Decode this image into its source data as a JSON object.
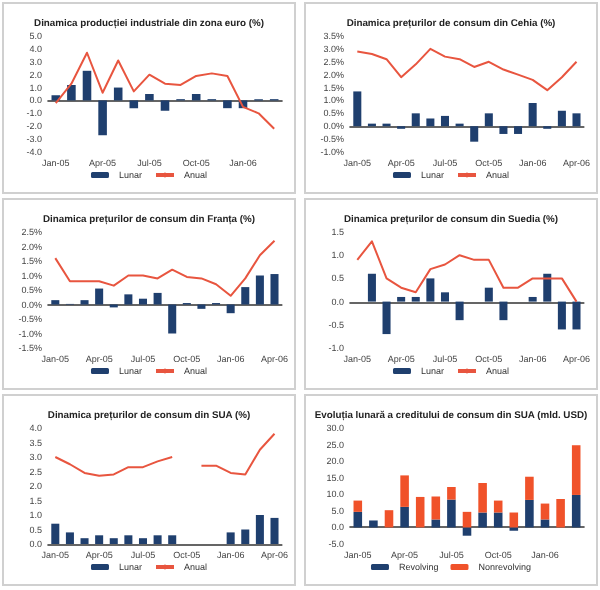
{
  "chart_data": [
    {
      "type": "bar",
      "title": "Dinamica producției industriale din zona euro (%)",
      "categories": [
        "Jan-05",
        null,
        null,
        "Apr-05",
        null,
        null,
        "Jul-05",
        null,
        null,
        "Oct-05",
        null,
        null,
        "Jan-06",
        null,
        null
      ],
      "series": [
        {
          "name": "Lunar",
          "type": "bar",
          "color": "#1f3f6e",
          "values": [
            0.4,
            1.2,
            2.3,
            -2.7,
            1.0,
            -0.6,
            0.5,
            -0.8,
            0.1,
            0.5,
            0.1,
            -0.6,
            -0.6,
            0.1,
            0.1
          ]
        },
        {
          "name": "Anual",
          "type": "line",
          "color": "#e8553f",
          "values": [
            -0.2,
            1.3,
            3.7,
            0.6,
            3.1,
            0.7,
            2.0,
            1.3,
            1.2,
            1.9,
            2.1,
            1.9,
            -0.5,
            -1.0,
            -2.2
          ]
        }
      ],
      "ylim": [
        -4,
        5
      ],
      "yticks": [
        {
          "value": -4,
          "label": "-4.0"
        },
        {
          "value": -3,
          "label": "-3.0"
        },
        {
          "value": -2,
          "label": "-2.0"
        },
        {
          "value": -1,
          "label": "-1.0"
        },
        {
          "value": 0,
          "label": "0.0"
        },
        {
          "value": 1,
          "label": "1.0"
        },
        {
          "value": 2,
          "label": "2.0"
        },
        {
          "value": 3,
          "label": "3.0"
        },
        {
          "value": 4,
          "label": "4.0"
        },
        {
          "value": 5,
          "label": "5.0"
        }
      ],
      "legend": "bottom",
      "marker": "none"
    },
    {
      "type": "bar",
      "title": "Dinamica prețurilor de consum din Cehia (%)",
      "categories": [
        "Jan-05",
        null,
        null,
        "Apr-05",
        null,
        null,
        "Jul-05",
        null,
        null,
        "Oct-05",
        null,
        null,
        "Jan-06",
        null,
        null,
        "Apr-06"
      ],
      "series": [
        {
          "name": "Lunar",
          "type": "bar",
          "color": "#1f3f6e",
          "values": [
            1.35,
            0.1,
            0.1,
            -0.1,
            0.5,
            0.3,
            0.4,
            0.1,
            -0.6,
            0.5,
            -0.3,
            -0.3,
            0.9,
            -0.1,
            0.6,
            0.5
          ]
        },
        {
          "name": "Anual",
          "type": "line",
          "color": "#e8553f",
          "values": [
            2.9,
            2.8,
            2.6,
            1.9,
            2.4,
            3.0,
            2.7,
            2.6,
            2.3,
            2.5,
            2.2,
            2.0,
            1.8,
            1.4,
            1.9,
            2.5
          ]
        }
      ],
      "ylim": [
        -1,
        3.5
      ],
      "yticks": [
        {
          "value": -1,
          "label": "-1.0%"
        },
        {
          "value": -0.5,
          "label": "-0.5%"
        },
        {
          "value": 0,
          "label": "0.0%"
        },
        {
          "value": 0.5,
          "label": "0.5%"
        },
        {
          "value": 1,
          "label": "1.0%"
        },
        {
          "value": 1.5,
          "label": "1.5%"
        },
        {
          "value": 2,
          "label": "2.0%"
        },
        {
          "value": 2.5,
          "label": "2.5%"
        },
        {
          "value": 3,
          "label": "3.0%"
        },
        {
          "value": 3.5,
          "label": "3.5%"
        }
      ],
      "legend": "bottom",
      "marker": "none"
    },
    {
      "type": "bar",
      "title": "Dinamica prețurilor de consum din Franța (%)",
      "categories": [
        "Jan-05",
        null,
        null,
        "Apr-05",
        null,
        null,
        "Jul-05",
        null,
        null,
        "Oct-05",
        null,
        null,
        "Jan-06",
        null,
        null,
        "Apr-06"
      ],
      "series": [
        {
          "name": "Lunar",
          "type": "bar",
          "color": "#1f3f6e",
          "values": [
            0.15,
            0.02,
            0.15,
            0.55,
            -0.1,
            0.35,
            0.2,
            0.4,
            -1.0,
            0.05,
            -0.15,
            0.05,
            -0.3,
            0.6,
            1.0,
            1.05
          ]
        },
        {
          "name": "Anual",
          "type": "line",
          "color": "#e8553f",
          "values": [
            1.6,
            0.8,
            0.8,
            0.8,
            0.65,
            1.0,
            1.0,
            0.9,
            1.2,
            0.95,
            0.9,
            0.7,
            0.3,
            0.9,
            1.7,
            2.2
          ]
        }
      ],
      "ylim": [
        -1.5,
        2.5
      ],
      "yticks": [
        {
          "value": -1.5,
          "label": "-1.5%"
        },
        {
          "value": -1,
          "label": "-1.0%"
        },
        {
          "value": -0.5,
          "label": "-0.5%"
        },
        {
          "value": 0,
          "label": "0.0%"
        },
        {
          "value": 0.5,
          "label": "0.5%"
        },
        {
          "value": 1,
          "label": "1.0%"
        },
        {
          "value": 1.5,
          "label": "1.5%"
        },
        {
          "value": 2,
          "label": "2.0%"
        },
        {
          "value": 2.5,
          "label": "2.5%"
        }
      ],
      "legend": "bottom",
      "marker": "none"
    },
    {
      "type": "bar",
      "title": "Dinamica prețurilor de consum din Suedia (%)",
      "categories": [
        "Jan-05",
        null,
        null,
        "Apr-05",
        null,
        null,
        "Jul-05",
        null,
        null,
        "Oct-05",
        null,
        null,
        "Jan-06",
        null,
        null,
        "Apr-06"
      ],
      "series": [
        {
          "name": "Lunar",
          "type": "bar",
          "color": "#1f3f6e",
          "values": [
            null,
            0.6,
            -0.7,
            0.1,
            0.1,
            0.5,
            0.2,
            -0.4,
            0,
            0.3,
            -0.4,
            0,
            0.1,
            0.6,
            -0.6,
            -0.6
          ]
        },
        {
          "name": "Anual",
          "type": "line",
          "color": "#e8553f",
          "values": [
            0.9,
            1.3,
            0.5,
            0.3,
            0.2,
            0.7,
            0.8,
            1.0,
            0.9,
            0.9,
            0.3,
            0.3,
            0.5,
            0.5,
            0.5,
            0.0
          ]
        }
      ],
      "ylim": [
        -1,
        1.5
      ],
      "yticks": [
        {
          "value": -1,
          "label": "-1.0"
        },
        {
          "value": -0.5,
          "label": "-0.5"
        },
        {
          "value": 0,
          "label": "0.0"
        },
        {
          "value": 0.5,
          "label": "0.5"
        },
        {
          "value": 1,
          "label": "1.0"
        },
        {
          "value": 1.5,
          "label": "1.5"
        }
      ],
      "legend": "bottom",
      "marker": "none"
    },
    {
      "type": "bar",
      "title": "Dinamica prețurilor de consum din SUA (%)",
      "categories": [
        "Jan-05",
        null,
        null,
        "Apr-05",
        null,
        null,
        "Jul-05",
        null,
        null,
        "Oct-05",
        null,
        null,
        "Jan-06",
        null,
        null,
        "Apr-06"
      ],
      "series": [
        {
          "name": "Lunar",
          "type": "bar",
          "color": "#1f3f6e",
          "values": [
            0.7,
            0.4,
            0.2,
            0.3,
            0.2,
            0.3,
            0.2,
            0.3,
            0.3,
            null,
            null,
            null,
            0.4,
            0.5,
            1.0,
            0.9
          ]
        },
        {
          "name": "Anual",
          "type": "line",
          "color": "#e8553f",
          "values": [
            3.0,
            2.75,
            2.45,
            2.35,
            2.4,
            2.65,
            2.65,
            2.85,
            3.0,
            null,
            2.7,
            2.7,
            2.45,
            2.4,
            3.25,
            3.8
          ]
        }
      ],
      "ylim": [
        0,
        4
      ],
      "yticks": [
        {
          "value": 0,
          "label": "0.0"
        },
        {
          "value": 0.5,
          "label": "0.5"
        },
        {
          "value": 1,
          "label": "1.0"
        },
        {
          "value": 1.5,
          "label": "1.5"
        },
        {
          "value": 2,
          "label": "2.0"
        },
        {
          "value": 2.5,
          "label": "2.5"
        },
        {
          "value": 3,
          "label": "3.0"
        },
        {
          "value": 3.5,
          "label": "3.5"
        },
        {
          "value": 4,
          "label": "4.0"
        }
      ],
      "legend": "bottom",
      "marker": "none"
    },
    {
      "type": "bar",
      "title": "Evoluția lunară a creditului de consum din SUA (mld. USD)",
      "categories": [
        "Jan-05",
        null,
        null,
        "Apr-05",
        null,
        null,
        "Jul-05",
        null,
        null,
        "Oct-05",
        null,
        null,
        "Jan-06",
        null,
        null
      ],
      "stacked": true,
      "series": [
        {
          "name": "Revolving",
          "color": "#1f3f6e",
          "values": [
            4.7,
            2.1,
            null,
            6.2,
            null,
            2.4,
            8.4,
            -2.5,
            4.5,
            4.5,
            -1.0,
            8.3,
            2.4,
            null,
            9.8
          ]
        },
        {
          "name": "Nonrevolving",
          "color": "#f0522a",
          "values": [
            3.4,
            null,
            5.2,
            9.5,
            9.2,
            6.9,
            3.8,
            4.7,
            8.9,
            3.6,
            4.5,
            7.0,
            4.8,
            8.6,
            15.0
          ]
        }
      ],
      "ylim": [
        -5,
        30
      ],
      "yticks": [
        {
          "value": -5,
          "label": "-5.0"
        },
        {
          "value": 0,
          "label": "0.0"
        },
        {
          "value": 5,
          "label": "5.0"
        },
        {
          "value": 10,
          "label": "10.0"
        },
        {
          "value": 15,
          "label": "15.0"
        },
        {
          "value": 20,
          "label": "20.0"
        },
        {
          "value": 25,
          "label": "25.0"
        },
        {
          "value": 30,
          "label": "30.0"
        }
      ],
      "legend": "bottom"
    }
  ]
}
